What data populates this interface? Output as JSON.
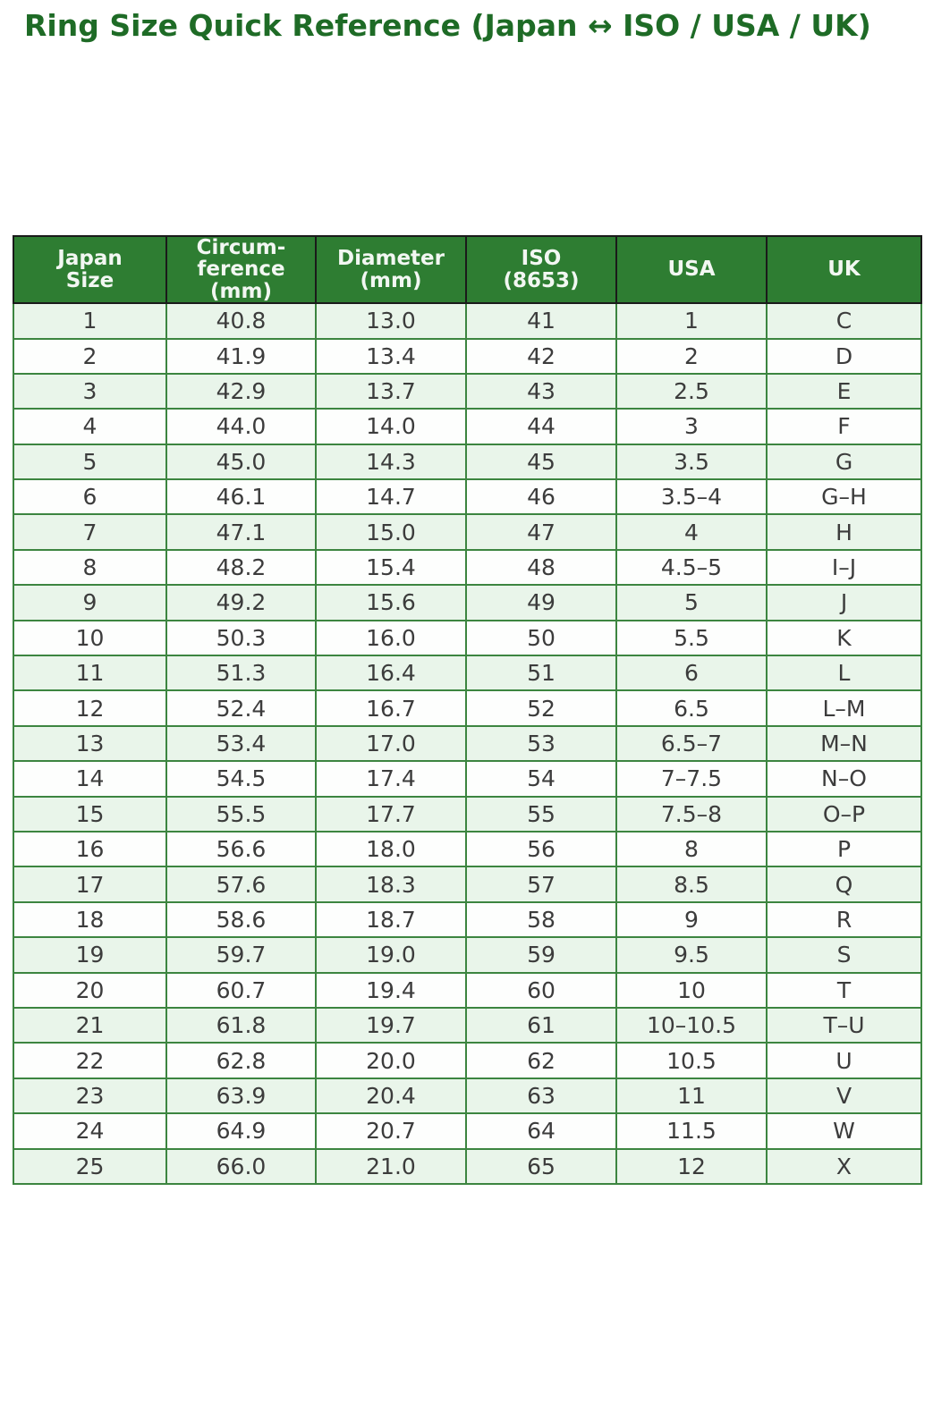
{
  "page": {
    "title": "Ring Size Quick Reference (Japan ↔ ISO / USA / UK)"
  },
  "colors": {
    "title_text": "#1e6b26",
    "header_bg": "#2e7d32",
    "header_text": "#f2f7f2",
    "row_alt_bg": "#e9f5ea",
    "row_bg": "#ffffff",
    "body_border": "#3c8540",
    "header_border": "#1a1a1a",
    "cell_text": "#3c3c3c"
  },
  "chart_data": {
    "type": "table",
    "title": "Ring Size Quick Reference (Japan ↔ ISO / USA / UK)",
    "columns": [
      "Japan\nSize",
      "Circum-\nference\n(mm)",
      "Diameter\n(mm)",
      "ISO\n(8653)",
      "USA",
      "UK"
    ],
    "rows": [
      [
        "1",
        "40.8",
        "13.0",
        "41",
        "1",
        "C"
      ],
      [
        "2",
        "41.9",
        "13.4",
        "42",
        "2",
        "D"
      ],
      [
        "3",
        "42.9",
        "13.7",
        "43",
        "2.5",
        "E"
      ],
      [
        "4",
        "44.0",
        "14.0",
        "44",
        "3",
        "F"
      ],
      [
        "5",
        "45.0",
        "14.3",
        "45",
        "3.5",
        "G"
      ],
      [
        "6",
        "46.1",
        "14.7",
        "46",
        "3.5–4",
        "G–H"
      ],
      [
        "7",
        "47.1",
        "15.0",
        "47",
        "4",
        "H"
      ],
      [
        "8",
        "48.2",
        "15.4",
        "48",
        "4.5–5",
        "I–J"
      ],
      [
        "9",
        "49.2",
        "15.6",
        "49",
        "5",
        "J"
      ],
      [
        "10",
        "50.3",
        "16.0",
        "50",
        "5.5",
        "K"
      ],
      [
        "11",
        "51.3",
        "16.4",
        "51",
        "6",
        "L"
      ],
      [
        "12",
        "52.4",
        "16.7",
        "52",
        "6.5",
        "L–M"
      ],
      [
        "13",
        "53.4",
        "17.0",
        "53",
        "6.5–7",
        "M–N"
      ],
      [
        "14",
        "54.5",
        "17.4",
        "54",
        "7–7.5",
        "N–O"
      ],
      [
        "15",
        "55.5",
        "17.7",
        "55",
        "7.5–8",
        "O–P"
      ],
      [
        "16",
        "56.6",
        "18.0",
        "56",
        "8",
        "P"
      ],
      [
        "17",
        "57.6",
        "18.3",
        "57",
        "8.5",
        "Q"
      ],
      [
        "18",
        "58.6",
        "18.7",
        "58",
        "9",
        "R"
      ],
      [
        "19",
        "59.7",
        "19.0",
        "59",
        "9.5",
        "S"
      ],
      [
        "20",
        "60.7",
        "19.4",
        "60",
        "10",
        "T"
      ],
      [
        "21",
        "61.8",
        "19.7",
        "61",
        "10–10.5",
        "T–U"
      ],
      [
        "22",
        "62.8",
        "20.0",
        "62",
        "10.5",
        "U"
      ],
      [
        "23",
        "63.9",
        "20.4",
        "63",
        "11",
        "V"
      ],
      [
        "24",
        "64.9",
        "20.7",
        "64",
        "11.5",
        "W"
      ],
      [
        "25",
        "66.0",
        "21.0",
        "65",
        "12",
        "X"
      ]
    ]
  }
}
